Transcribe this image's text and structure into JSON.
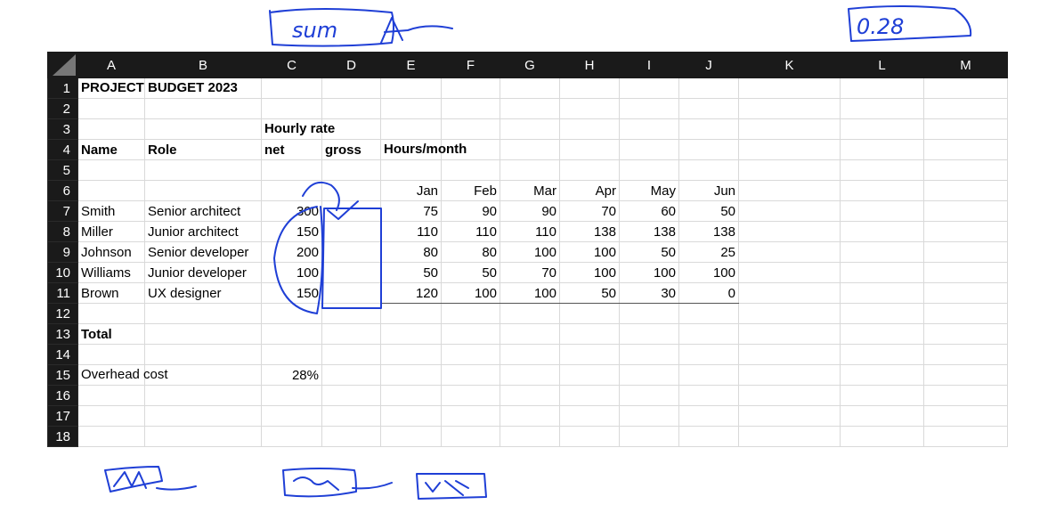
{
  "columns": [
    "A",
    "B",
    "C",
    "D",
    "E",
    "F",
    "G",
    "H",
    "I",
    "J",
    "K",
    "L",
    "M"
  ],
  "rows": [
    {
      "n": "1",
      "title": "PROJECT BUDGET 2023"
    },
    {
      "n": "2"
    },
    {
      "n": "3",
      "hourly_rate": "Hourly rate"
    },
    {
      "n": "4",
      "name": "Name",
      "role": "Role",
      "net": "net",
      "gross": "gross",
      "hours": "Hours/month"
    },
    {
      "n": "5"
    },
    {
      "n": "6",
      "months": [
        "Jan",
        "Feb",
        "Mar",
        "Apr",
        "May",
        "Jun"
      ]
    },
    {
      "n": "7",
      "name": "Smith",
      "role": "Senior architect",
      "net": "300",
      "vals": [
        "75",
        "90",
        "90",
        "70",
        "60",
        "50"
      ]
    },
    {
      "n": "8",
      "name": "Miller",
      "role": "Junior architect",
      "net": "150",
      "vals": [
        "110",
        "110",
        "110",
        "138",
        "138",
        "138"
      ]
    },
    {
      "n": "9",
      "name": "Johnson",
      "role": "Senior developer",
      "net": "200",
      "vals": [
        "80",
        "80",
        "100",
        "100",
        "50",
        "25"
      ]
    },
    {
      "n": "10",
      "name": "Williams",
      "role": "Junior developer",
      "net": "100",
      "vals": [
        "50",
        "50",
        "70",
        "100",
        "100",
        "100"
      ]
    },
    {
      "n": "11",
      "name": "Brown",
      "role": "UX designer",
      "net": "150",
      "vals": [
        "120",
        "100",
        "100",
        "50",
        "30",
        "0"
      ]
    },
    {
      "n": "12"
    },
    {
      "n": "13",
      "total": "Total"
    },
    {
      "n": "14"
    },
    {
      "n": "15",
      "overhead": "Overhead cost",
      "overhead_value": "28%"
    },
    {
      "n": "16"
    },
    {
      "n": "17"
    },
    {
      "n": "18"
    }
  ],
  "annotations": {
    "sum_note": "sum",
    "value_note": "0.28"
  },
  "colors": {
    "header_bg": "#1a1a1a",
    "header_text": "#ffffff",
    "ink": "#1f3fd6",
    "grid": "#d9d9d9"
  }
}
